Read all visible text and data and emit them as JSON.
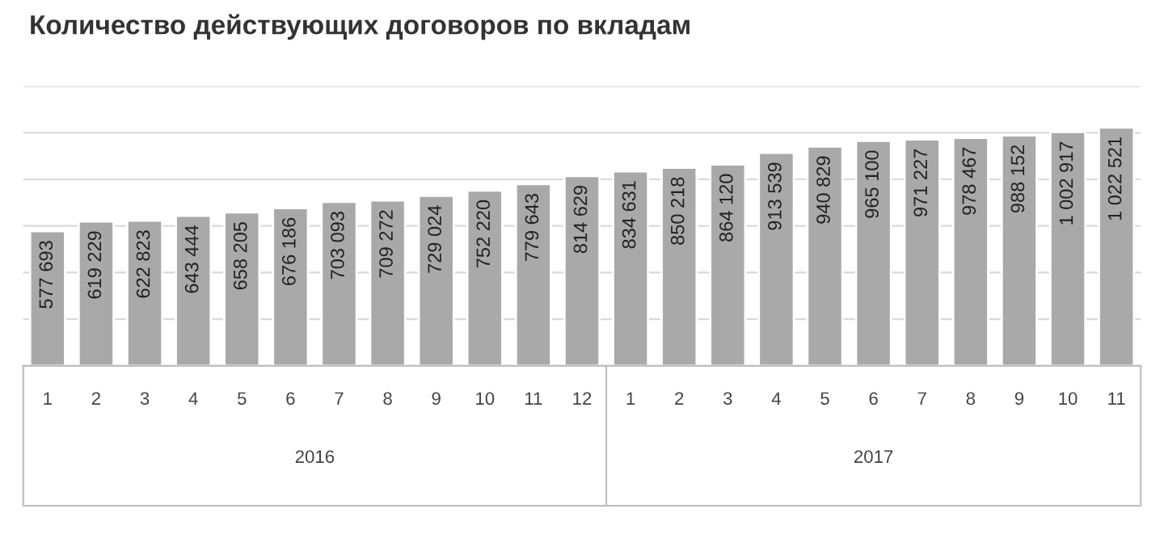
{
  "chart_data": {
    "type": "bar",
    "title": "Количество действующих договоров по вкладам",
    "categories": [
      "1",
      "2",
      "3",
      "4",
      "5",
      "6",
      "7",
      "8",
      "9",
      "10",
      "11",
      "12",
      "1",
      "2",
      "3",
      "4",
      "5",
      "6",
      "7",
      "8",
      "9",
      "10",
      "11"
    ],
    "values": [
      577693,
      619229,
      622823,
      643444,
      658205,
      676186,
      703093,
      709272,
      729024,
      752220,
      779643,
      814629,
      834631,
      850218,
      864120,
      913539,
      940829,
      965100,
      971227,
      978467,
      988152,
      1002917,
      1022521
    ],
    "value_labels": [
      "577 693",
      "619 229",
      "622 823",
      "643 444",
      "658 205",
      "676 186",
      "703 093",
      "709 272",
      "729 024",
      "752 220",
      "779 643",
      "814 629",
      "834 631",
      "850 218",
      "864 120",
      "913 539",
      "940 829",
      "965 100",
      "971 227",
      "978 467",
      "988 152",
      "1 002 917",
      "1 022 521"
    ],
    "color": "#a9a9a9",
    "ylim": [
      0,
      1200000
    ],
    "yticks": [
      {
        "value": 0,
        "label": null
      },
      {
        "value": 200000,
        "label": null
      },
      {
        "value": 400000,
        "label": null
      },
      {
        "value": 600000,
        "label": null
      },
      {
        "value": 800000,
        "label": null
      },
      {
        "value": 1000000,
        "label": null
      },
      {
        "value": 1200000,
        "label": null
      }
    ],
    "grid": "y",
    "tick_labels": "x",
    "annotations": [
      "2016",
      "2017"
    ]
  }
}
